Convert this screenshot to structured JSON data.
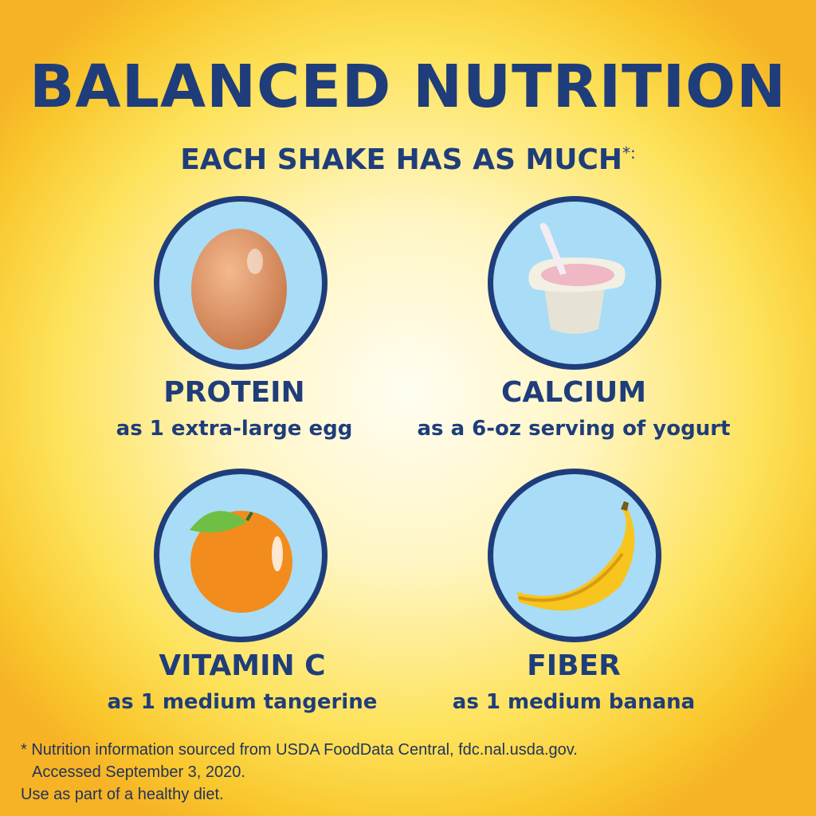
{
  "title": "BALANCED NUTRITION",
  "subtitle": "EACH SHAKE HAS AS MUCH",
  "subtitle_mark": "*:",
  "items": [
    {
      "nutrient": "PROTEIN",
      "comparison": "as 1 extra-large egg",
      "icon": "egg-icon"
    },
    {
      "nutrient": "CALCIUM",
      "comparison": "as a 6-oz serving of yogurt",
      "icon": "yogurt-icon"
    },
    {
      "nutrient": "VITAMIN C",
      "comparison": "as 1 medium tangerine",
      "icon": "tangerine-icon"
    },
    {
      "nutrient": "FIBER",
      "comparison": "as 1 medium banana",
      "icon": "banana-icon"
    }
  ],
  "footnote": {
    "line1": "* Nutrition information sourced from USDA FoodData Central, fdc.nal.usda.gov.",
    "line2": "Accessed September 3, 2020.",
    "line3": "Use as part of a healthy diet."
  },
  "colors": {
    "navy": "#1f3d7a",
    "circle_fill": "#a9dcf6",
    "background": "#fde25a"
  }
}
